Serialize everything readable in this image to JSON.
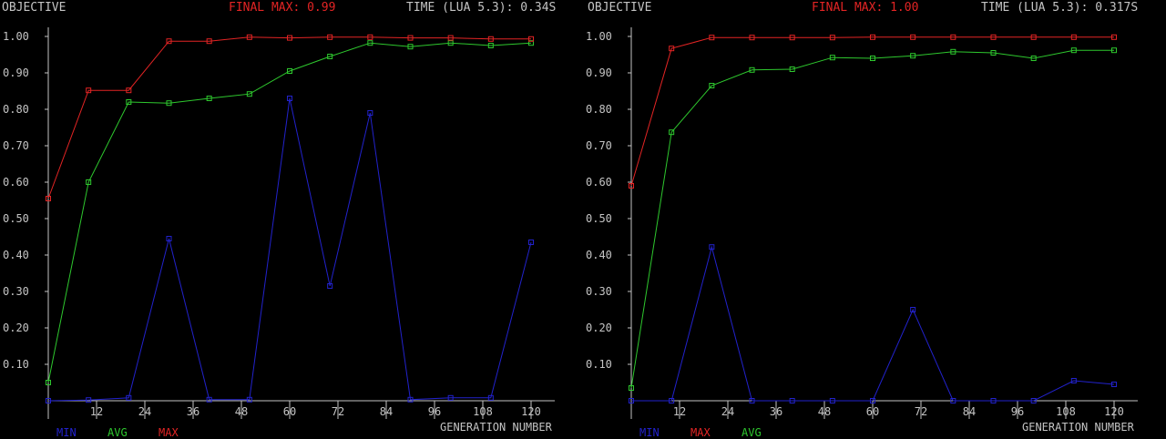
{
  "colors": {
    "bg": "#000000",
    "axis": "#c4c4c4",
    "min": "#2222cc",
    "avg": "#2ec82e",
    "max": "#e32424"
  },
  "chart_data": [
    {
      "type": "line",
      "title": "OBJECTIVE",
      "final_max_label": "FINAL MAX: 0.99",
      "time_label": "TIME (LUA 5.3): 0.34S",
      "ylabel": "OBJECTIVE",
      "xlabel": "GENERATION NUMBER",
      "xlim": [
        0,
        125
      ],
      "ylim": [
        0,
        1.0
      ],
      "xticks": [
        12,
        24,
        36,
        48,
        60,
        72,
        84,
        96,
        108,
        120
      ],
      "xtick_labels": [
        "12",
        "24",
        "36",
        "48",
        "60",
        "72",
        "84",
        "96",
        "108",
        "120"
      ],
      "yticks": [
        0.1,
        0.2,
        0.3,
        0.4,
        0.5,
        0.6,
        0.7,
        0.8,
        0.9,
        1.0
      ],
      "ytick_labels": [
        "0.10",
        "0.20",
        "0.30",
        "0.40",
        "0.50",
        "0.60",
        "0.70",
        "0.80",
        "0.90",
        "1.00"
      ],
      "x": [
        0,
        10,
        20,
        30,
        40,
        50,
        60,
        70,
        80,
        90,
        100,
        110,
        120
      ],
      "legend": [
        "MIN",
        "AVG",
        "MAX"
      ],
      "series": [
        {
          "name": "MIN",
          "color": "#2222cc",
          "values": [
            0.0,
            0.002,
            0.008,
            0.445,
            0.003,
            0.003,
            0.83,
            0.315,
            0.79,
            0.003,
            0.008,
            0.008,
            0.435
          ]
        },
        {
          "name": "AVG",
          "color": "#2ec82e",
          "values": [
            0.05,
            0.6,
            0.82,
            0.817,
            0.83,
            0.842,
            0.905,
            0.945,
            0.982,
            0.972,
            0.982,
            0.975,
            0.982
          ]
        },
        {
          "name": "MAX",
          "color": "#e32424",
          "values": [
            0.555,
            0.852,
            0.852,
            0.987,
            0.987,
            0.998,
            0.996,
            0.998,
            0.998,
            0.996,
            0.996,
            0.993,
            0.993
          ]
        }
      ]
    },
    {
      "type": "line",
      "title": "OBJECTIVE",
      "final_max_label": "FINAL MAX: 1.00",
      "time_label": "TIME (LUA 5.3): 0.317S",
      "ylabel": "OBJECTIVE",
      "xlabel": "GENERATION NUMBER",
      "xlim": [
        0,
        125
      ],
      "ylim": [
        0,
        1.0
      ],
      "xticks": [
        12,
        24,
        36,
        48,
        60,
        72,
        84,
        96,
        108,
        120
      ],
      "xtick_labels": [
        "12",
        "24",
        "36",
        "48",
        "60",
        "72",
        "84",
        "96",
        "108",
        "120"
      ],
      "yticks": [
        0.1,
        0.2,
        0.3,
        0.4,
        0.5,
        0.6,
        0.7,
        0.8,
        0.9,
        1.0
      ],
      "ytick_labels": [
        "0.10",
        "0.20",
        "0.30",
        "0.40",
        "0.50",
        "0.60",
        "0.70",
        "0.80",
        "0.90",
        "1.00"
      ],
      "x": [
        0,
        10,
        20,
        30,
        40,
        50,
        60,
        70,
        80,
        90,
        100,
        110,
        120
      ],
      "legend": [
        "MIN",
        "MAX",
        "AVG"
      ],
      "series": [
        {
          "name": "MIN",
          "color": "#2222cc",
          "values": [
            0.0,
            0.0,
            0.422,
            0.0,
            0.0,
            0.0,
            0.0,
            0.25,
            0.0,
            0.0,
            0.0,
            0.055,
            0.045
          ]
        },
        {
          "name": "AVG",
          "color": "#2ec82e",
          "values": [
            0.035,
            0.737,
            0.865,
            0.908,
            0.91,
            0.942,
            0.94,
            0.947,
            0.958,
            0.955,
            0.94,
            0.962,
            0.962
          ]
        },
        {
          "name": "MAX",
          "color": "#e32424",
          "values": [
            0.59,
            0.967,
            0.997,
            0.997,
            0.997,
            0.997,
            0.998,
            0.998,
            0.998,
            0.998,
            0.998,
            0.998,
            0.998
          ]
        }
      ]
    }
  ]
}
